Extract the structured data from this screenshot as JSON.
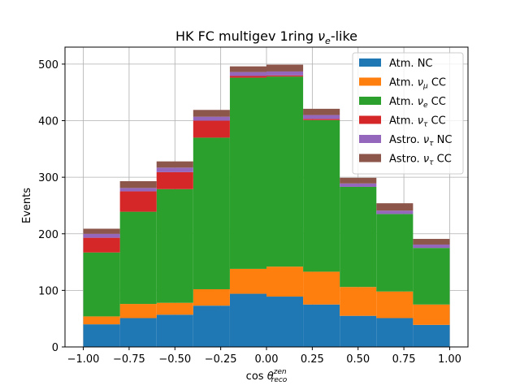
{
  "chart_data": {
    "type": "bar",
    "stacked": true,
    "title": "HK FC multigev 1ring ν_e-like",
    "title_parts": {
      "main": "HK FC multigev 1ring ",
      "nu": "ν",
      "sub": "e",
      "suffix": "-like"
    },
    "xlabel": "cos θ_reco^zen",
    "xlabel_parts": {
      "main": "cos ",
      "theta": "θ",
      "sub": "reco",
      "sup": "zen"
    },
    "ylabel": "Events",
    "xlim": [
      -1.1,
      1.1
    ],
    "ylim": [
      0,
      530
    ],
    "grid": true,
    "legend_position": "top-right",
    "bin_edges": [
      -1.0,
      -0.8,
      -0.6,
      -0.4,
      -0.2,
      0.0,
      0.2,
      0.4,
      0.6,
      0.8,
      1.0
    ],
    "x_ticks": [
      "−1.00",
      "−0.75",
      "−0.50",
      "−0.25",
      "0.00",
      "0.25",
      "0.50",
      "0.75",
      "1.00"
    ],
    "x_tick_values": [
      -1.0,
      -0.75,
      -0.5,
      -0.25,
      0.0,
      0.25,
      0.5,
      0.75,
      1.0
    ],
    "y_ticks": [
      "0",
      "100",
      "200",
      "300",
      "400",
      "500"
    ],
    "y_tick_values": [
      0,
      100,
      200,
      300,
      400,
      500
    ],
    "series": [
      {
        "name": "Atm. NC",
        "label_parts": {
          "main": "Atm. NC"
        },
        "color": "#1f77b4",
        "values": [
          40,
          51,
          57,
          73,
          94,
          89,
          75,
          55,
          51,
          39
        ]
      },
      {
        "name": "Atm. ν_μ CC",
        "label_parts": {
          "main": "Atm. ",
          "nu": "ν",
          "sub": "μ",
          "suffix": " CC"
        },
        "color": "#ff7f0e",
        "values": [
          14,
          25,
          21,
          29,
          44,
          53,
          58,
          51,
          47,
          36
        ]
      },
      {
        "name": "Atm. ν_e CC",
        "label_parts": {
          "main": "Atm. ",
          "nu": "ν",
          "sub": "e",
          "suffix": " CC"
        },
        "color": "#2ca02c",
        "values": [
          113,
          163,
          201,
          268,
          338,
          336,
          268,
          177,
          137,
          100
        ]
      },
      {
        "name": "Atm. ν_τ CC",
        "label_parts": {
          "main": "Atm. ",
          "nu": "ν",
          "sub": "τ",
          "suffix": " CC"
        },
        "color": "#d62728",
        "values": [
          26,
          36,
          30,
          30,
          3,
          2,
          2,
          0,
          0,
          0
        ]
      },
      {
        "name": "Astro. ν_τ NC",
        "label_parts": {
          "main": "Astro. ",
          "nu": "ν",
          "sub": "τ",
          "suffix": " NC"
        },
        "color": "#9467bd",
        "values": [
          7,
          6,
          8,
          7,
          7,
          7,
          7,
          6,
          6,
          6
        ]
      },
      {
        "name": "Astro. ν_τ CC",
        "label_parts": {
          "main": "Astro. ",
          "nu": "ν",
          "sub": "τ",
          "suffix": " CC"
        },
        "color": "#8c564b",
        "values": [
          9,
          12,
          11,
          12,
          10,
          12,
          11,
          10,
          13,
          10
        ]
      }
    ]
  }
}
